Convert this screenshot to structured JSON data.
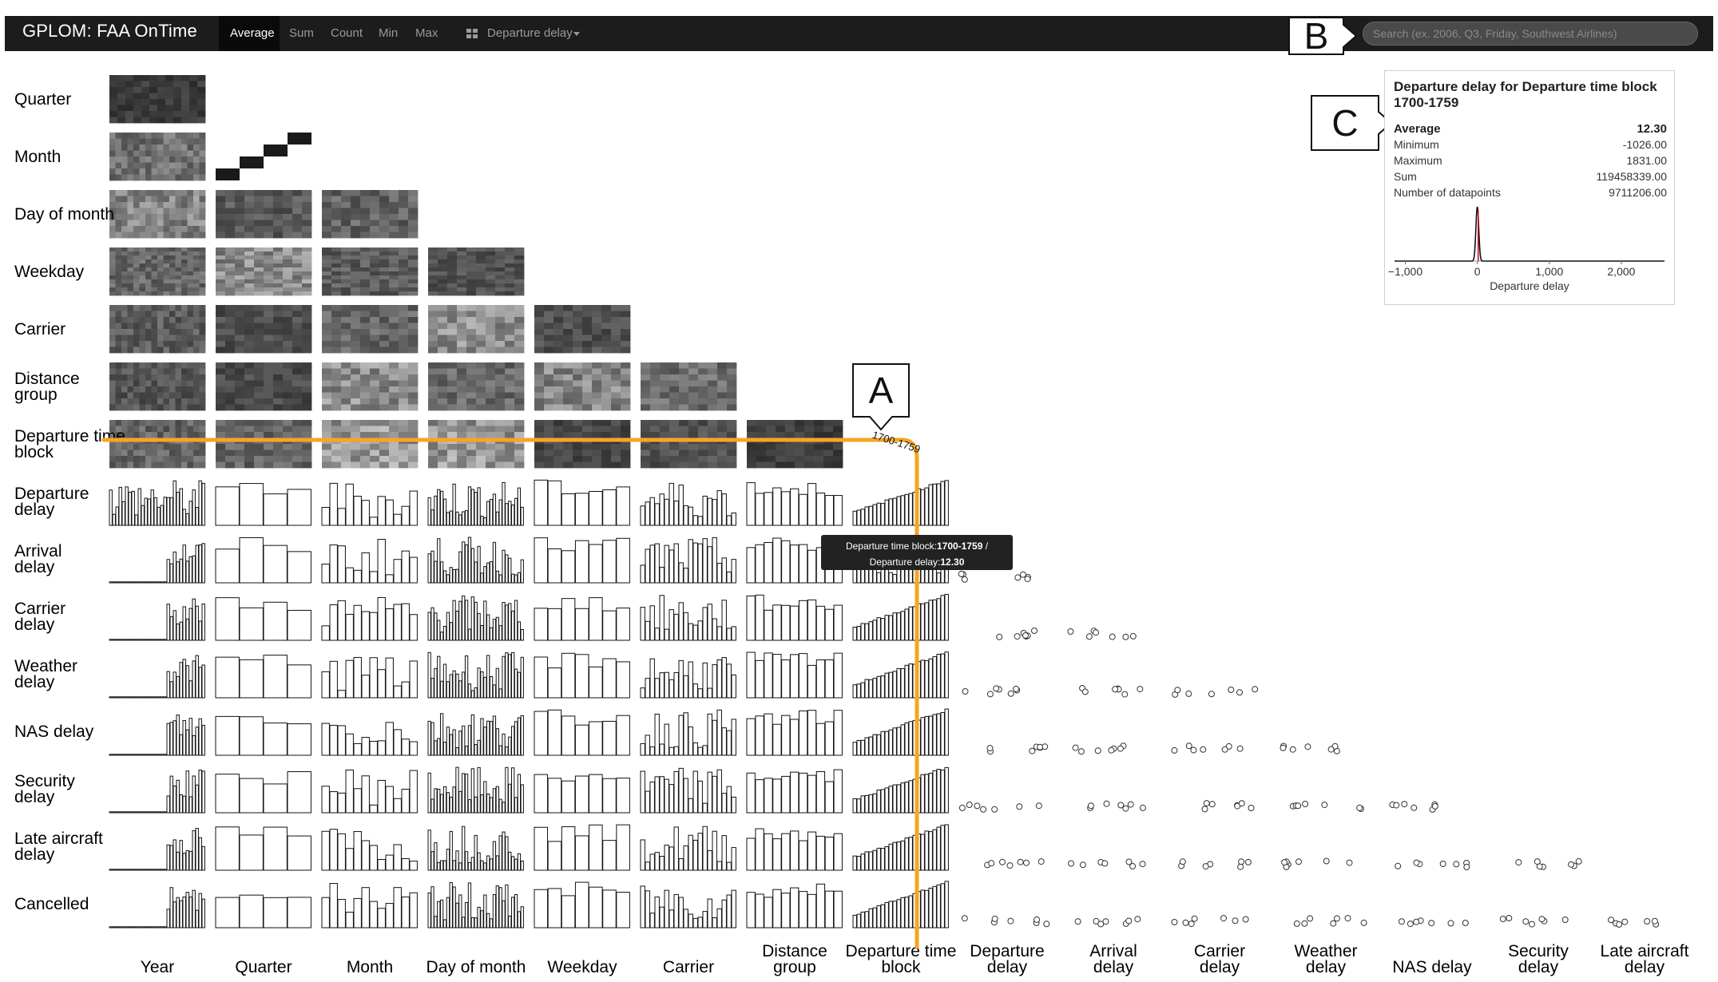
{
  "app": {
    "title": "GPLOM: FAA OnTime"
  },
  "toolbar": {
    "aggregations": [
      "Average",
      "Sum",
      "Count",
      "Min",
      "Max"
    ],
    "active_aggregation": "Average",
    "measure_icon": "grid-icon",
    "measure": "Departure delay",
    "search_placeholder": "Search (ex. 2006, Q3, Friday, Southwest Airlines)"
  },
  "callouts": {
    "a": "A",
    "b": "B",
    "c": "C"
  },
  "dimensions": [
    "Year",
    "Quarter",
    "Month",
    "Day of month",
    "Weekday",
    "Carrier",
    "Distance group",
    "Departure time block"
  ],
  "measures": [
    "Departure delay",
    "Arrival delay",
    "Carrier delay",
    "Weather delay",
    "NAS delay",
    "Security delay",
    "Late aircraft delay",
    "Cancelled"
  ],
  "row_labels": [
    "Quarter",
    "Month",
    "Day of month",
    "Weekday",
    "Carrier",
    "Distance group",
    "Departure time block",
    "Departure delay",
    "Arrival delay",
    "Carrier delay",
    "Weather delay",
    "NAS delay",
    "Security delay",
    "Late aircraft delay",
    "Cancelled"
  ],
  "column_labels": [
    "Year",
    "Quarter",
    "Month",
    "Day of month",
    "Weekday",
    "Carrier",
    "Distance group",
    "Departure time block",
    "Departure delay",
    "Arrival delay",
    "Carrier delay",
    "Weather delay",
    "NAS delay",
    "Security delay",
    "Late aircraft delay"
  ],
  "selection": {
    "dimension": "Departure time block",
    "value": "1700-1759",
    "highlight_color": "#f5a623"
  },
  "hover_tooltip": {
    "line1_key": "Departure time block:",
    "line1_value": "1700-1759",
    "line1_suffix": " /",
    "line2_key": "Departure delay:",
    "line2_value": "12.30"
  },
  "detail_panel": {
    "title": "Departure delay for Departure time block 1700-1759",
    "stats": [
      {
        "label": "Average",
        "value": "12.30",
        "emphasis": true
      },
      {
        "label": "Minimum",
        "value": "-1026.00"
      },
      {
        "label": "Maximum",
        "value": "1831.00"
      },
      {
        "label": "Sum",
        "value": "119458339.00"
      },
      {
        "label": "Number of datapoints",
        "value": "9711206.00"
      }
    ],
    "histogram": {
      "xlabel": "Departure delay",
      "ticks": [
        -1000,
        0,
        1000,
        2000
      ],
      "tick_labels": [
        "−1,000",
        "0",
        "1,000",
        "2,000"
      ],
      "xlim": [
        -1150,
        2600
      ],
      "peak_at": 0,
      "mean_line_at": 12.3,
      "mean_line_color": "#d0021b"
    }
  }
}
